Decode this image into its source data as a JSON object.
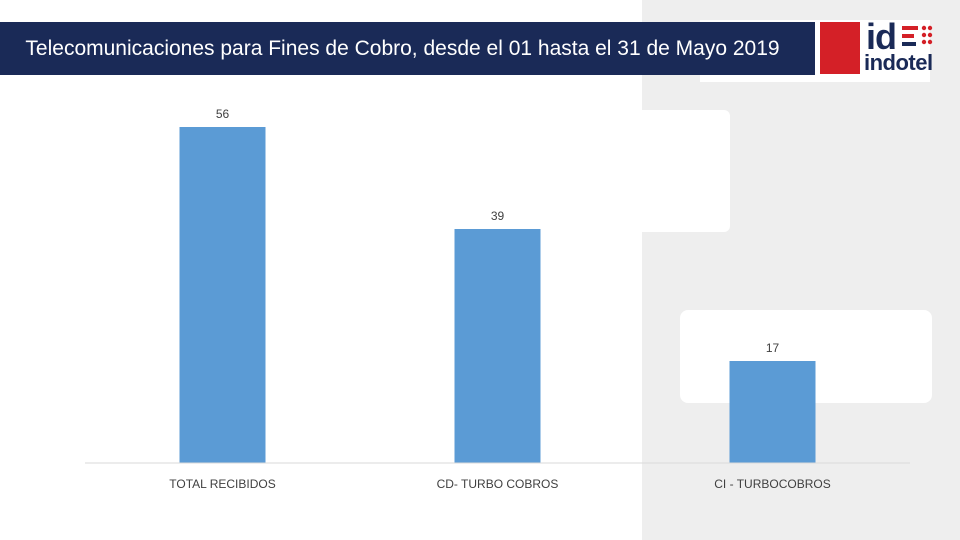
{
  "header": {
    "title": "Telecomunicaciones para Fines de Cobro, desde el 01 hasta el 31 de Mayo 2019"
  },
  "logo": {
    "mark_text": "id",
    "name": "indotel",
    "icon": "indotel-logo-icon"
  },
  "colors": {
    "bar": "#5b9bd5",
    "title_bg": "#1a2a57",
    "brand_red": "#d42027"
  },
  "chart_data": {
    "type": "bar",
    "categories": [
      "TOTAL RECIBIDOS",
      "CD- TURBO COBROS",
      "CI - TURBOCOBROS"
    ],
    "values": [
      56,
      39,
      17
    ],
    "title": "",
    "xlabel": "",
    "ylabel": "",
    "ylim": [
      0,
      60
    ],
    "grid": false,
    "legend": "none",
    "data_labels": true
  }
}
